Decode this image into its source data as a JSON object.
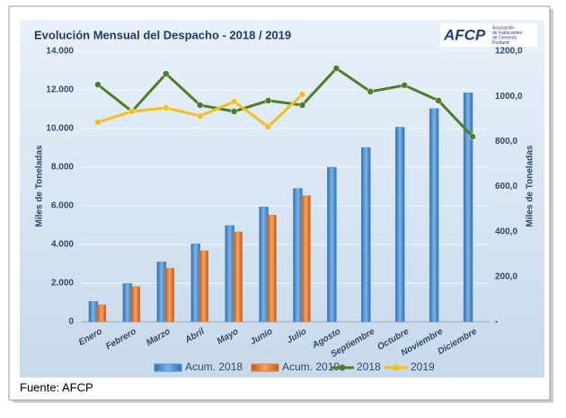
{
  "chart_data": {
    "type": "combo",
    "title": "Evolución Mensual del Despacho - 2018 / 2019",
    "logo": {
      "text": "AFCP",
      "subtitle": [
        "Asociación",
        "de Fabricantes",
        "de Cemento",
        "Portland"
      ]
    },
    "source": "Fuente: AFCP",
    "y_label": "Miles de Toneladas",
    "y2_label": "Miles de Toneladas",
    "categories": [
      "Enero",
      "Febrero",
      "Marzo",
      "Abril",
      "Mayo",
      "Junio",
      "Julio",
      "Agosto",
      "Septiembre",
      "Octubre",
      "Noviembre",
      "Diciembre"
    ],
    "series": [
      {
        "name": "Acum. 2018",
        "type": "bar",
        "color": "#4f8fd0",
        "values": [
          1050,
          1980,
          3100,
          4030,
          4980,
          5950,
          6900,
          8000,
          9020,
          10070,
          11030,
          11850
        ]
      },
      {
        "name": "Acum. 2019",
        "type": "bar",
        "color": "#ed7d31",
        "values": [
          880,
          1820,
          2780,
          3680,
          4650,
          5520,
          6530,
          null,
          null,
          null,
          null,
          null
        ]
      },
      {
        "name": "2018",
        "type": "line",
        "axis": "y2",
        "color": "#4e7d2b",
        "values": [
          1052,
          933,
          1100,
          961,
          933,
          981,
          961,
          1124,
          1021,
          1049,
          981,
          821
        ]
      },
      {
        "name": "2019",
        "type": "line",
        "axis": "y2",
        "color": "#f2c01e",
        "values": [
          885,
          933,
          949,
          913,
          977,
          865,
          1009,
          null,
          null,
          null,
          null,
          null
        ]
      }
    ],
    "ylim": [
      0,
      14000
    ],
    "yticks": [
      0,
      {
        "value": 2000,
        "label": "2.000"
      },
      {
        "value": 4000,
        "label": "4.000"
      },
      {
        "value": 6000,
        "label": "6.000"
      },
      {
        "value": 8000,
        "label": "8.000"
      },
      {
        "value": 10000,
        "label": "10.000"
      },
      {
        "value": 12000,
        "label": "12.000"
      },
      {
        "value": 14000,
        "label": "14.000"
      }
    ],
    "y2lim": [
      0,
      1200
    ],
    "y2ticks": [
      {
        "value": 0,
        "label": "-"
      },
      {
        "value": 200,
        "label": "200,0"
      },
      {
        "value": 400,
        "label": "400,0"
      },
      {
        "value": 600,
        "label": "600,0"
      },
      {
        "value": 800,
        "label": "800,0"
      },
      {
        "value": 1000,
        "label": "1000,0"
      },
      {
        "value": 1200,
        "label": "1200,0"
      }
    ],
    "grid": true,
    "legend": "bottom"
  }
}
